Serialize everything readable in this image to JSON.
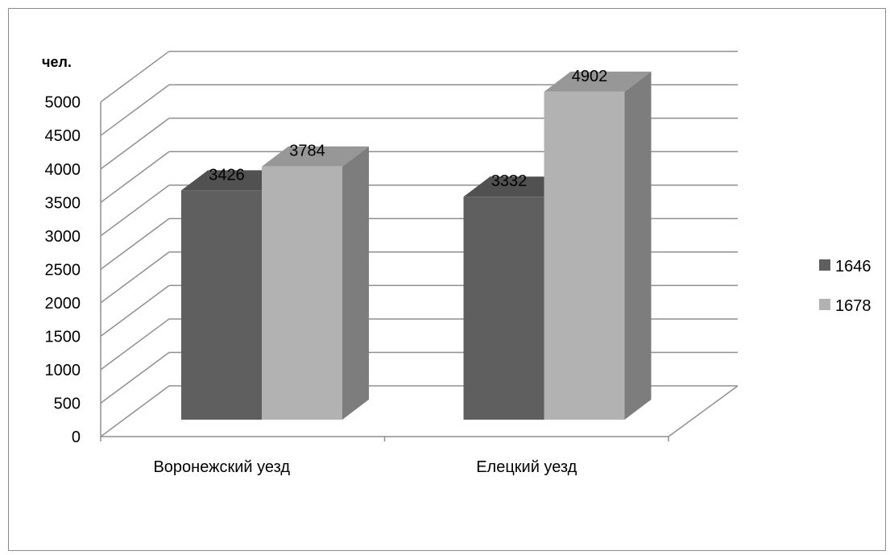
{
  "chart_data": {
    "type": "bar",
    "ylabel": "чел.",
    "ylim": [
      0,
      5000
    ],
    "yticks": [
      "0",
      "500",
      "1000",
      "1500",
      "2000",
      "2500",
      "3000",
      "3500",
      "4000",
      "4500",
      "5000"
    ],
    "categories": [
      "Воронежский уезд",
      "Елецкий уезд"
    ],
    "series": [
      {
        "name": "1646",
        "values": [
          3426,
          3332
        ],
        "color": "#5f5f5f"
      },
      {
        "name": "1678",
        "values": [
          3784,
          4902
        ],
        "color": "#b2b2b2"
      }
    ],
    "data_labels": [
      [
        "3426",
        "3332"
      ],
      [
        "3784",
        "4902"
      ]
    ],
    "legend_position": "right",
    "grid": true,
    "style": "3d-column"
  }
}
